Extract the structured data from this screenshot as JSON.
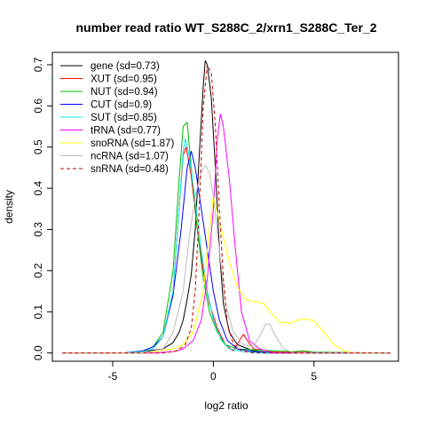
{
  "chart_data": {
    "type": "line",
    "title": "number read ratio WT_S288C_2/xrn1_S288C_Ter_2",
    "xlabel": "log2 ratio",
    "ylabel": "density",
    "xlim": [
      -8.0,
      9.2
    ],
    "ylim": [
      -0.02,
      0.73
    ],
    "xticks": [
      -5,
      0,
      5
    ],
    "yticks": [
      0.0,
      0.1,
      0.2,
      0.3,
      0.4,
      0.5,
      0.6,
      0.7
    ],
    "legend_position": "top-left",
    "series": [
      {
        "name": "gene (sd=0.73)",
        "color": "#000000",
        "dash": false,
        "points": [
          [
            -7.5,
            0
          ],
          [
            -4.5,
            0
          ],
          [
            -3.5,
            0.003
          ],
          [
            -2.5,
            0.01
          ],
          [
            -2,
            0.025
          ],
          [
            -1.7,
            0.05
          ],
          [
            -1.5,
            0.08
          ],
          [
            -1.3,
            0.13
          ],
          [
            -1.1,
            0.19
          ],
          [
            -0.9,
            0.3
          ],
          [
            -0.7,
            0.48
          ],
          [
            -0.5,
            0.65
          ],
          [
            -0.4,
            0.71
          ],
          [
            -0.3,
            0.7
          ],
          [
            -0.1,
            0.62
          ],
          [
            0.1,
            0.45
          ],
          [
            0.3,
            0.25
          ],
          [
            0.5,
            0.12
          ],
          [
            0.8,
            0.05
          ],
          [
            1.2,
            0.02
          ],
          [
            2,
            0.005
          ],
          [
            3,
            0
          ],
          [
            8.8,
            0
          ]
        ]
      },
      {
        "name": "XUT (sd=0.95)",
        "color": "#ff0000",
        "dash": false,
        "points": [
          [
            -7.5,
            0
          ],
          [
            -4.5,
            0
          ],
          [
            -3.5,
            0.003
          ],
          [
            -3,
            0.01
          ],
          [
            -2.5,
            0.04
          ],
          [
            -2,
            0.15
          ],
          [
            -1.7,
            0.35
          ],
          [
            -1.5,
            0.48
          ],
          [
            -1.35,
            0.5
          ],
          [
            -1.1,
            0.43
          ],
          [
            -0.8,
            0.3
          ],
          [
            -0.5,
            0.2
          ],
          [
            -0.2,
            0.12
          ],
          [
            0.2,
            0.06
          ],
          [
            0.6,
            0.02
          ],
          [
            1,
            0.005
          ],
          [
            1.3,
            0.03
          ],
          [
            1.5,
            0.045
          ],
          [
            1.7,
            0.03
          ],
          [
            2,
            0.01
          ],
          [
            3,
            0.002
          ],
          [
            8.8,
            0
          ]
        ]
      },
      {
        "name": "NUT (sd=0.94)",
        "color": "#00bb00",
        "dash": false,
        "points": [
          [
            -7.5,
            0
          ],
          [
            -4.5,
            0
          ],
          [
            -3.5,
            0.005
          ],
          [
            -3,
            0.015
          ],
          [
            -2.5,
            0.05
          ],
          [
            -2,
            0.2
          ],
          [
            -1.7,
            0.42
          ],
          [
            -1.5,
            0.55
          ],
          [
            -1.3,
            0.56
          ],
          [
            -1.1,
            0.45
          ],
          [
            -0.8,
            0.3
          ],
          [
            -0.5,
            0.18
          ],
          [
            -0.2,
            0.1
          ],
          [
            0.2,
            0.05
          ],
          [
            0.6,
            0.02
          ],
          [
            1.2,
            0.01
          ],
          [
            3,
            0.005
          ],
          [
            4,
            0.003
          ],
          [
            4.5,
            0.005
          ],
          [
            5,
            0.002
          ],
          [
            8.8,
            0
          ]
        ]
      },
      {
        "name": "CUT (sd=0.9)",
        "color": "#0000ff",
        "dash": false,
        "points": [
          [
            -7.5,
            0
          ],
          [
            -4.5,
            0
          ],
          [
            -3.5,
            0.005
          ],
          [
            -3,
            0.015
          ],
          [
            -2.5,
            0.04
          ],
          [
            -2,
            0.14
          ],
          [
            -1.6,
            0.3
          ],
          [
            -1.3,
            0.45
          ],
          [
            -1.1,
            0.49
          ],
          [
            -0.9,
            0.45
          ],
          [
            -0.6,
            0.35
          ],
          [
            -0.3,
            0.25
          ],
          [
            0,
            0.15
          ],
          [
            0.3,
            0.08
          ],
          [
            0.7,
            0.03
          ],
          [
            1.2,
            0.01
          ],
          [
            2,
            0.003
          ],
          [
            3,
            0
          ],
          [
            8.8,
            0
          ]
        ]
      },
      {
        "name": "SUT (sd=0.85)",
        "color": "#00eeee",
        "dash": false,
        "points": [
          [
            -7.5,
            0
          ],
          [
            -4.5,
            0
          ],
          [
            -3.5,
            0.003
          ],
          [
            -3,
            0.01
          ],
          [
            -2.5,
            0.04
          ],
          [
            -2,
            0.15
          ],
          [
            -1.7,
            0.35
          ],
          [
            -1.5,
            0.49
          ],
          [
            -1.4,
            0.52
          ],
          [
            -1.2,
            0.48
          ],
          [
            -0.9,
            0.37
          ],
          [
            -0.6,
            0.25
          ],
          [
            -0.3,
            0.15
          ],
          [
            0,
            0.08
          ],
          [
            0.4,
            0.03
          ],
          [
            0.8,
            0.01
          ],
          [
            1.5,
            0.003
          ],
          [
            2.5,
            0
          ],
          [
            8.8,
            0
          ]
        ]
      },
      {
        "name": "tRNA (sd=0.77)",
        "color": "#ff00ff",
        "dash": false,
        "points": [
          [
            -7.5,
            0
          ],
          [
            -3,
            0
          ],
          [
            -2,
            0.003
          ],
          [
            -1.5,
            0.01
          ],
          [
            -1,
            0.03
          ],
          [
            -0.6,
            0.08
          ],
          [
            -0.3,
            0.18
          ],
          [
            0,
            0.35
          ],
          [
            0.2,
            0.52
          ],
          [
            0.35,
            0.58
          ],
          [
            0.5,
            0.55
          ],
          [
            0.8,
            0.42
          ],
          [
            1.1,
            0.25
          ],
          [
            1.4,
            0.1
          ],
          [
            1.8,
            0.03
          ],
          [
            2.3,
            0.01
          ],
          [
            3,
            0
          ],
          [
            8.8,
            0
          ]
        ]
      },
      {
        "name": "snoRNA (sd=1.87)",
        "color": "#ffff00",
        "dash": false,
        "points": [
          [
            -7.5,
            0
          ],
          [
            -4,
            0
          ],
          [
            -3,
            0.003
          ],
          [
            -2,
            0.01
          ],
          [
            -1.5,
            0.02
          ],
          [
            -1,
            0.05
          ],
          [
            -0.5,
            0.15
          ],
          [
            -0.2,
            0.3
          ],
          [
            0,
            0.38
          ],
          [
            0.3,
            0.32
          ],
          [
            0.8,
            0.22
          ],
          [
            1.2,
            0.16
          ],
          [
            1.6,
            0.13
          ],
          [
            2,
            0.125
          ],
          [
            2.5,
            0.12
          ],
          [
            3,
            0.09
          ],
          [
            3.3,
            0.075
          ],
          [
            3.8,
            0.072
          ],
          [
            4.2,
            0.08
          ],
          [
            4.6,
            0.083
          ],
          [
            5,
            0.078
          ],
          [
            5.5,
            0.05
          ],
          [
            6,
            0.02
          ],
          [
            6.5,
            0.005
          ],
          [
            7,
            0
          ],
          [
            8.8,
            0
          ]
        ]
      },
      {
        "name": "ncRNA (sd=1.07)",
        "color": "#bbbbbb",
        "dash": false,
        "points": [
          [
            -7.5,
            0
          ],
          [
            -3.5,
            0
          ],
          [
            -2.5,
            0.01
          ],
          [
            -2,
            0.05
          ],
          [
            -1.5,
            0.15
          ],
          [
            -1.2,
            0.28
          ],
          [
            -0.9,
            0.38
          ],
          [
            -0.6,
            0.44
          ],
          [
            -0.4,
            0.455
          ],
          [
            -0.2,
            0.44
          ],
          [
            0,
            0.38
          ],
          [
            0.3,
            0.25
          ],
          [
            0.6,
            0.12
          ],
          [
            1,
            0.05
          ],
          [
            1.5,
            0.02
          ],
          [
            2,
            0.015
          ],
          [
            2.4,
            0.05
          ],
          [
            2.6,
            0.07
          ],
          [
            2.8,
            0.07
          ],
          [
            3.1,
            0.04
          ],
          [
            3.5,
            0.01
          ],
          [
            4,
            0
          ],
          [
            8.8,
            0
          ]
        ]
      },
      {
        "name": "snRNA (sd=0.48)",
        "color": "#cc0000",
        "dash": true,
        "points": [
          [
            -7.5,
            0
          ],
          [
            -2.5,
            0
          ],
          [
            -1.8,
            0.005
          ],
          [
            -1.4,
            0.02
          ],
          [
            -1.1,
            0.06
          ],
          [
            -0.9,
            0.15
          ],
          [
            -0.7,
            0.35
          ],
          [
            -0.5,
            0.6
          ],
          [
            -0.3,
            0.7
          ],
          [
            -0.1,
            0.68
          ],
          [
            0.1,
            0.55
          ],
          [
            0.3,
            0.35
          ],
          [
            0.5,
            0.18
          ],
          [
            0.7,
            0.07
          ],
          [
            1,
            0.02
          ],
          [
            1.4,
            0.005
          ],
          [
            2,
            0
          ],
          [
            8.8,
            0
          ]
        ]
      }
    ]
  }
}
